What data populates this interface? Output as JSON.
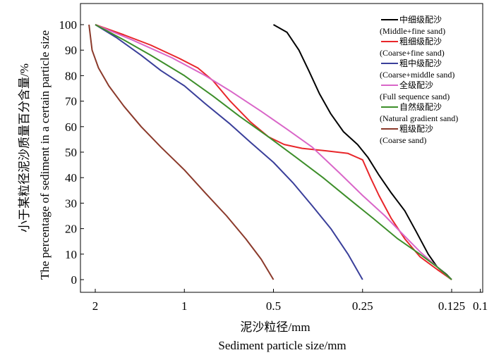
{
  "chart_data": {
    "type": "line",
    "x_scale": "log-reversed",
    "xlim": [
      2.25,
      0.1
    ],
    "ylim": [
      0,
      100
    ],
    "x_ticks": [
      {
        "value": 2,
        "label": "2"
      },
      {
        "value": 1,
        "label": "1"
      },
      {
        "value": 0.5,
        "label": "0.5"
      },
      {
        "value": 0.25,
        "label": "0.25"
      },
      {
        "value": 0.125,
        "label": "0.125"
      },
      {
        "value": 0.1,
        "label": "0.1"
      }
    ],
    "y_ticks": [
      0,
      10,
      20,
      30,
      40,
      50,
      60,
      70,
      80,
      90,
      100
    ],
    "xlabel_cn": "泥沙粒径/mm",
    "xlabel_en": "Sediment particle size/mm",
    "ylabel_cn": "小于某粒径泥沙质量百分含量/%",
    "ylabel_en": "The percentage of sediment in a certain particle size",
    "grid": false,
    "legend_position": "top-right",
    "series": [
      {
        "name_cn": "中细级配沙",
        "name_en": "(Middle+fine sand)",
        "color": "#000000",
        "points": [
          [
            0.5,
            100
          ],
          [
            0.45,
            97
          ],
          [
            0.41,
            90
          ],
          [
            0.38,
            82
          ],
          [
            0.35,
            73
          ],
          [
            0.32,
            65
          ],
          [
            0.29,
            58
          ],
          [
            0.26,
            53
          ],
          [
            0.24,
            48
          ],
          [
            0.22,
            41
          ],
          [
            0.2,
            34
          ],
          [
            0.18,
            27
          ],
          [
            0.165,
            19
          ],
          [
            0.15,
            10
          ],
          [
            0.14,
            5
          ],
          [
            0.13,
            2
          ],
          [
            0.125,
            0
          ]
        ]
      },
      {
        "name_cn": "粗细级配沙",
        "name_en": "(Coarse+fine sand)",
        "color": "#e8262a",
        "points": [
          [
            2,
            100
          ],
          [
            1.6,
            96
          ],
          [
            1.3,
            92
          ],
          [
            1.05,
            87
          ],
          [
            0.9,
            83
          ],
          [
            0.8,
            78
          ],
          [
            0.7,
            70
          ],
          [
            0.6,
            62
          ],
          [
            0.52,
            56
          ],
          [
            0.46,
            53
          ],
          [
            0.4,
            51.5
          ],
          [
            0.33,
            50.5
          ],
          [
            0.28,
            49.5
          ],
          [
            0.25,
            47
          ],
          [
            0.235,
            40
          ],
          [
            0.22,
            33
          ],
          [
            0.2,
            24
          ],
          [
            0.18,
            16
          ],
          [
            0.16,
            9
          ],
          [
            0.14,
            4
          ],
          [
            0.125,
            0
          ]
        ]
      },
      {
        "name_cn": "粗中级配沙",
        "name_en": "(Coarse+middle sand)",
        "color": "#3a3f9a",
        "points": [
          [
            2,
            100
          ],
          [
            1.7,
            95
          ],
          [
            1.4,
            88
          ],
          [
            1.2,
            82
          ],
          [
            1,
            76
          ],
          [
            0.85,
            69
          ],
          [
            0.7,
            61
          ],
          [
            0.6,
            54
          ],
          [
            0.5,
            46
          ],
          [
            0.43,
            38
          ],
          [
            0.37,
            29
          ],
          [
            0.32,
            20
          ],
          [
            0.28,
            10
          ],
          [
            0.25,
            0
          ]
        ]
      },
      {
        "name_cn": "全级配沙",
        "name_en": "(Full sequence sand)",
        "color": "#d966c8",
        "points": [
          [
            2,
            100
          ],
          [
            1.5,
            94
          ],
          [
            1.1,
            87
          ],
          [
            0.85,
            80
          ],
          [
            0.7,
            74
          ],
          [
            0.55,
            66
          ],
          [
            0.45,
            59
          ],
          [
            0.37,
            52
          ],
          [
            0.3,
            42
          ],
          [
            0.25,
            33
          ],
          [
            0.21,
            25
          ],
          [
            0.18,
            17
          ],
          [
            0.16,
            11
          ],
          [
            0.14,
            5
          ],
          [
            0.125,
            0
          ]
        ]
      },
      {
        "name_cn": "自然级配沙",
        "name_en": "(Natural gradient sand)",
        "color": "#3d8e2a",
        "points": [
          [
            2,
            100
          ],
          [
            1.6,
            94
          ],
          [
            1.3,
            88
          ],
          [
            1,
            80
          ],
          [
            0.8,
            72
          ],
          [
            0.65,
            64
          ],
          [
            0.52,
            56
          ],
          [
            0.42,
            48
          ],
          [
            0.34,
            40
          ],
          [
            0.28,
            32
          ],
          [
            0.23,
            24
          ],
          [
            0.19,
            16
          ],
          [
            0.16,
            10
          ],
          [
            0.14,
            5
          ],
          [
            0.125,
            0
          ]
        ]
      },
      {
        "name_cn": "粗级配沙",
        "name_en": "(Coarse sand)",
        "color": "#8b3a2b",
        "points": [
          [
            2.1,
            100
          ],
          [
            2.05,
            90
          ],
          [
            1.95,
            83
          ],
          [
            1.8,
            76
          ],
          [
            1.6,
            68
          ],
          [
            1.4,
            60
          ],
          [
            1.2,
            52
          ],
          [
            1,
            43
          ],
          [
            0.85,
            34
          ],
          [
            0.72,
            25
          ],
          [
            0.62,
            16
          ],
          [
            0.55,
            8
          ],
          [
            0.5,
            0
          ]
        ]
      }
    ]
  }
}
